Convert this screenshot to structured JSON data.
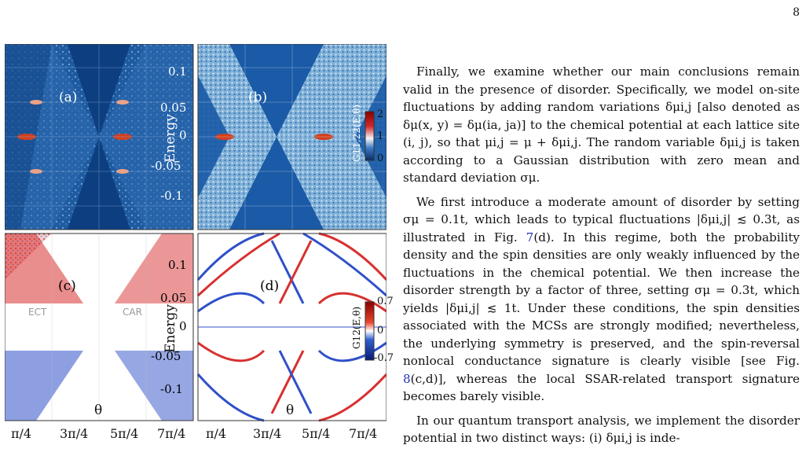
{
  "page_number": "8",
  "figure": {
    "panels": {
      "a": "(a)",
      "b": "(b)",
      "c": "(c)",
      "d": "(d)"
    },
    "energy_label": "Energy",
    "y_ticks_top": [
      "0.1",
      "0.05",
      "0",
      "-0.05",
      "-0.1"
    ],
    "y_ticks_bottom": [
      "0.1",
      "0.05",
      "0",
      "-0.05",
      "-0.1"
    ],
    "x_ticks": [
      "π/4",
      "3π/4",
      "5π/4",
      "7π/4",
      "π/4",
      "3π/4",
      "5π/4",
      "7π/4"
    ],
    "theta": "θ",
    "colorbar_top": {
      "title": "G11,22(E,θ)",
      "ticks": [
        "2",
        "1",
        "0"
      ]
    },
    "colorbar_bottom": {
      "title": "G12(E,θ)",
      "ticks": [
        "0.7",
        "0",
        "-0.7"
      ]
    },
    "labels": {
      "ect": "ECT",
      "car": "CAR"
    },
    "colors": {
      "blue_dark": "#0b3b78",
      "blue_mid": "#3b78c0",
      "red": "#d1282a",
      "white": "#ffffff"
    }
  },
  "text": {
    "p1": "Finally, we examine whether our main conclusions remain valid in the presence of disorder. Specifically, we model on-site fluctuations by adding random variations δμi,j [also denoted as δμ(x, y) = δμ(ia, ja)] to the chemical potential at each lattice site (i, j), so that μi,j = μ + δμi,j. The random variable δμi,j is taken according to a Gaussian distribution with zero mean and standard deviation σμ.",
    "p2_a": "We first introduce a moderate amount of disorder by setting σμ = 0.1t, which leads to typical fluctuations |δμi,j| ≲ 0.3t, as illustrated in Fig. ",
    "p2_ref1": "7",
    "p2_b": "(d). In this regime, both the probability density and the spin densities are only weakly influenced by the fluctuations in the chemical potential. We then increase the disorder strength by a factor of three, setting σμ = 0.3t, which yields |δμi,j| ≲ 1t. Under these conditions, the spin densities associated with the MCSs are strongly modified; nevertheless, the underlying symmetry is preserved, and the spin-reversal nonlocal conductance signature is clearly visible [see Fig. ",
    "p2_ref2": "8",
    "p2_c": "(c,d)], whereas the local SSAR-related transport signature becomes barely visible.",
    "p3": "In our quantum transport analysis, we implement the disorder potential in two distinct ways: (i) δμi,j is inde-"
  }
}
